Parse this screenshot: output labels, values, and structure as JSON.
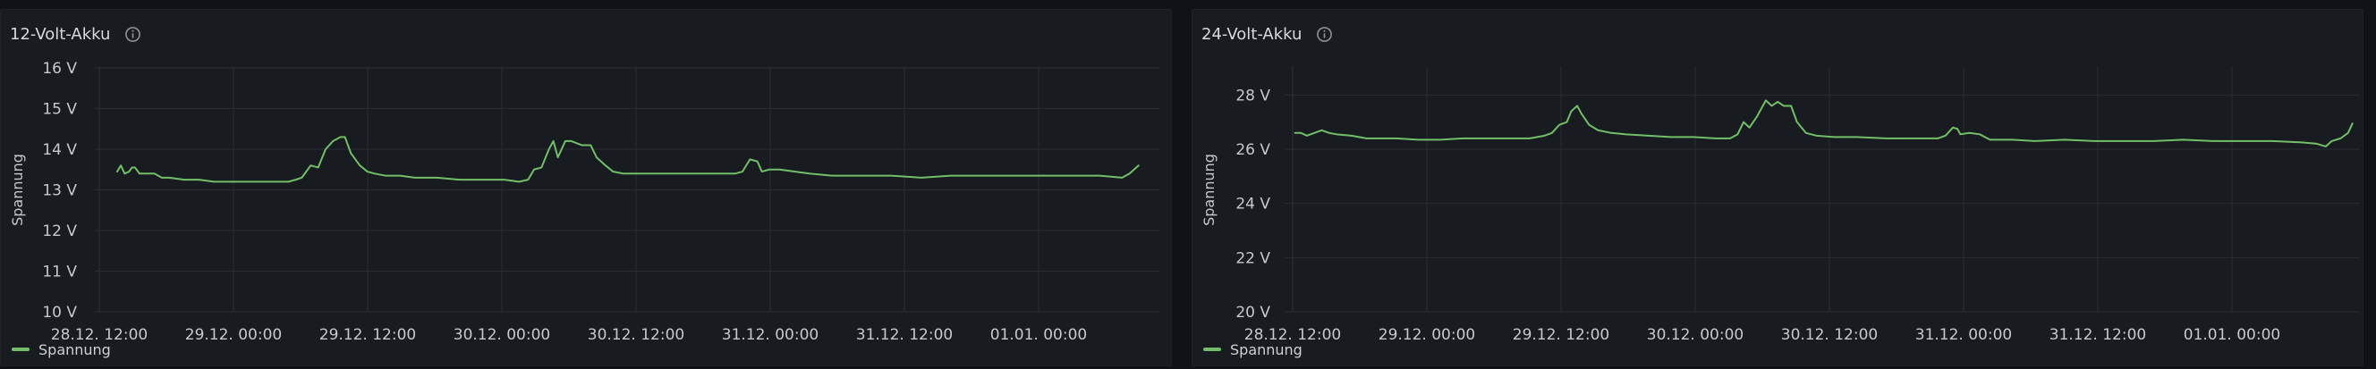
{
  "panels": [
    {
      "title": "12-Volt-Akku",
      "info_icon": "info-icon",
      "legend": {
        "label": "Spannung",
        "color": "#73bf69"
      },
      "chart_data": {
        "type": "line",
        "title": "12-Volt-Akku",
        "xlabel": "",
        "ylabel": "Spannung",
        "ylim": [
          10,
          16
        ],
        "y_unit": "V",
        "y_ticks": [
          "10 V",
          "11 V",
          "12 V",
          "13 V",
          "14 V",
          "15 V",
          "16 V"
        ],
        "x_ticks": [
          "28.12. 12:00",
          "29.12. 00:00",
          "29.12. 12:00",
          "30.12. 00:00",
          "30.12. 12:00",
          "31.12. 00:00",
          "31.12. 12:00",
          "01.01. 00:00"
        ],
        "grid": true,
        "legend_position": "bottom-left",
        "series": [
          {
            "name": "Spannung",
            "color": "#73bf69",
            "points": [
              [
                0,
                13.45
              ],
              [
                0.25,
                13.6
              ],
              [
                0.5,
                13.4
              ],
              [
                0.8,
                13.45
              ],
              [
                1.0,
                13.55
              ],
              [
                1.2,
                13.55
              ],
              [
                1.5,
                13.4
              ],
              [
                1.8,
                13.4
              ],
              [
                2.5,
                13.4
              ],
              [
                3.0,
                13.3
              ],
              [
                3.5,
                13.3
              ],
              [
                4.5,
                13.25
              ],
              [
                5.5,
                13.25
              ],
              [
                6.5,
                13.2
              ],
              [
                7.5,
                13.2
              ],
              [
                8.5,
                13.2
              ],
              [
                9.5,
                13.2
              ],
              [
                10.5,
                13.2
              ],
              [
                11.5,
                13.2
              ],
              [
                12.0,
                13.25
              ],
              [
                12.4,
                13.3
              ],
              [
                13.0,
                13.6
              ],
              [
                13.5,
                13.55
              ],
              [
                14.0,
                14.0
              ],
              [
                14.5,
                14.2
              ],
              [
                15.0,
                14.3
              ],
              [
                15.3,
                14.3
              ],
              [
                15.7,
                13.9
              ],
              [
                16.3,
                13.6
              ],
              [
                16.8,
                13.45
              ],
              [
                17.3,
                13.4
              ],
              [
                18.0,
                13.35
              ],
              [
                19.0,
                13.35
              ],
              [
                20.0,
                13.3
              ],
              [
                21.5,
                13.3
              ],
              [
                23.0,
                13.25
              ],
              [
                24.5,
                13.25
              ],
              [
                26.0,
                13.25
              ],
              [
                27.0,
                13.2
              ],
              [
                27.6,
                13.25
              ],
              [
                28.0,
                13.5
              ],
              [
                28.5,
                13.55
              ],
              [
                29.0,
                14.0
              ],
              [
                29.3,
                14.2
              ],
              [
                29.6,
                13.8
              ],
              [
                30.1,
                14.2
              ],
              [
                30.5,
                14.2
              ],
              [
                31.2,
                14.1
              ],
              [
                31.8,
                14.1
              ],
              [
                32.2,
                13.8
              ],
              [
                32.8,
                13.6
              ],
              [
                33.3,
                13.45
              ],
              [
                34.0,
                13.4
              ],
              [
                36.0,
                13.4
              ],
              [
                38.0,
                13.4
              ],
              [
                40.0,
                13.4
              ],
              [
                41.5,
                13.4
              ],
              [
                42.0,
                13.45
              ],
              [
                42.5,
                13.75
              ],
              [
                43.0,
                13.7
              ],
              [
                43.3,
                13.45
              ],
              [
                43.8,
                13.5
              ],
              [
                44.5,
                13.5
              ],
              [
                45.5,
                13.45
              ],
              [
                46.5,
                13.4
              ],
              [
                48.0,
                13.35
              ],
              [
                50.0,
                13.35
              ],
              [
                52.0,
                13.35
              ],
              [
                54.0,
                13.3
              ],
              [
                56.0,
                13.35
              ],
              [
                58.0,
                13.35
              ],
              [
                60.0,
                13.35
              ],
              [
                62.0,
                13.35
              ],
              [
                64.0,
                13.35
              ],
              [
                66.0,
                13.35
              ],
              [
                67.5,
                13.3
              ],
              [
                68.0,
                13.4
              ],
              [
                68.6,
                13.6
              ]
            ]
          }
        ]
      }
    },
    {
      "title": "24-Volt-Akku",
      "info_icon": "info-icon",
      "legend": {
        "label": "Spannung",
        "color": "#73bf69"
      },
      "chart_data": {
        "type": "line",
        "title": "24-Volt-Akku",
        "xlabel": "",
        "ylabel": "Spannung",
        "ylim": [
          20,
          29
        ],
        "y_unit": "V",
        "y_ticks": [
          "20 V",
          "22 V",
          "24 V",
          "26 V",
          "28 V"
        ],
        "x_ticks": [
          "28.12. 12:00",
          "29.12. 00:00",
          "29.12. 12:00",
          "30.12. 00:00",
          "30.12. 12:00",
          "31.12. 00:00",
          "31.12. 12:00",
          "01.01. 00:00"
        ],
        "grid": true,
        "legend_position": "bottom-left",
        "series": [
          {
            "name": "Spannung",
            "color": "#73bf69",
            "points": [
              [
                -0.8,
                26.6
              ],
              [
                -0.4,
                26.6
              ],
              [
                0.0,
                26.5
              ],
              [
                0.5,
                26.6
              ],
              [
                1.0,
                26.7
              ],
              [
                1.5,
                26.6
              ],
              [
                2.0,
                26.55
              ],
              [
                3.0,
                26.5
              ],
              [
                4.0,
                26.4
              ],
              [
                5.0,
                26.4
              ],
              [
                6.0,
                26.4
              ],
              [
                7.5,
                26.35
              ],
              [
                9.0,
                26.35
              ],
              [
                10.5,
                26.4
              ],
              [
                12.0,
                26.4
              ],
              [
                13.5,
                26.4
              ],
              [
                15.0,
                26.4
              ],
              [
                16.0,
                26.5
              ],
              [
                16.5,
                26.6
              ],
              [
                17.0,
                26.9
              ],
              [
                17.5,
                27.0
              ],
              [
                17.8,
                27.4
              ],
              [
                18.2,
                27.6
              ],
              [
                18.5,
                27.3
              ],
              [
                19.0,
                26.9
              ],
              [
                19.6,
                26.7
              ],
              [
                20.5,
                26.6
              ],
              [
                21.5,
                26.55
              ],
              [
                23.0,
                26.5
              ],
              [
                24.5,
                26.45
              ],
              [
                26.0,
                26.45
              ],
              [
                27.5,
                26.4
              ],
              [
                28.5,
                26.4
              ],
              [
                29.0,
                26.55
              ],
              [
                29.4,
                27.0
              ],
              [
                29.8,
                26.8
              ],
              [
                30.3,
                27.2
              ],
              [
                30.9,
                27.8
              ],
              [
                31.3,
                27.6
              ],
              [
                31.7,
                27.75
              ],
              [
                32.1,
                27.6
              ],
              [
                32.6,
                27.6
              ],
              [
                33.0,
                27.0
              ],
              [
                33.6,
                26.6
              ],
              [
                34.3,
                26.5
              ],
              [
                35.5,
                26.45
              ],
              [
                37.0,
                26.45
              ],
              [
                39.0,
                26.4
              ],
              [
                41.0,
                26.4
              ],
              [
                42.5,
                26.4
              ],
              [
                43.0,
                26.5
              ],
              [
                43.5,
                26.8
              ],
              [
                43.8,
                26.75
              ],
              [
                44.0,
                26.55
              ],
              [
                44.6,
                26.6
              ],
              [
                45.3,
                26.55
              ],
              [
                46.0,
                26.35
              ],
              [
                47.5,
                26.35
              ],
              [
                49.0,
                26.3
              ],
              [
                51.0,
                26.35
              ],
              [
                53.0,
                26.3
              ],
              [
                55.0,
                26.3
              ],
              [
                57.0,
                26.3
              ],
              [
                59.0,
                26.35
              ],
              [
                61.0,
                26.3
              ],
              [
                63.0,
                26.3
              ],
              [
                65.0,
                26.3
              ],
              [
                67.0,
                26.25
              ],
              [
                68.0,
                26.2
              ],
              [
                68.6,
                26.1
              ],
              [
                69.0,
                26.3
              ],
              [
                69.6,
                26.4
              ],
              [
                70.1,
                26.6
              ],
              [
                70.4,
                26.95
              ]
            ]
          }
        ]
      }
    }
  ]
}
